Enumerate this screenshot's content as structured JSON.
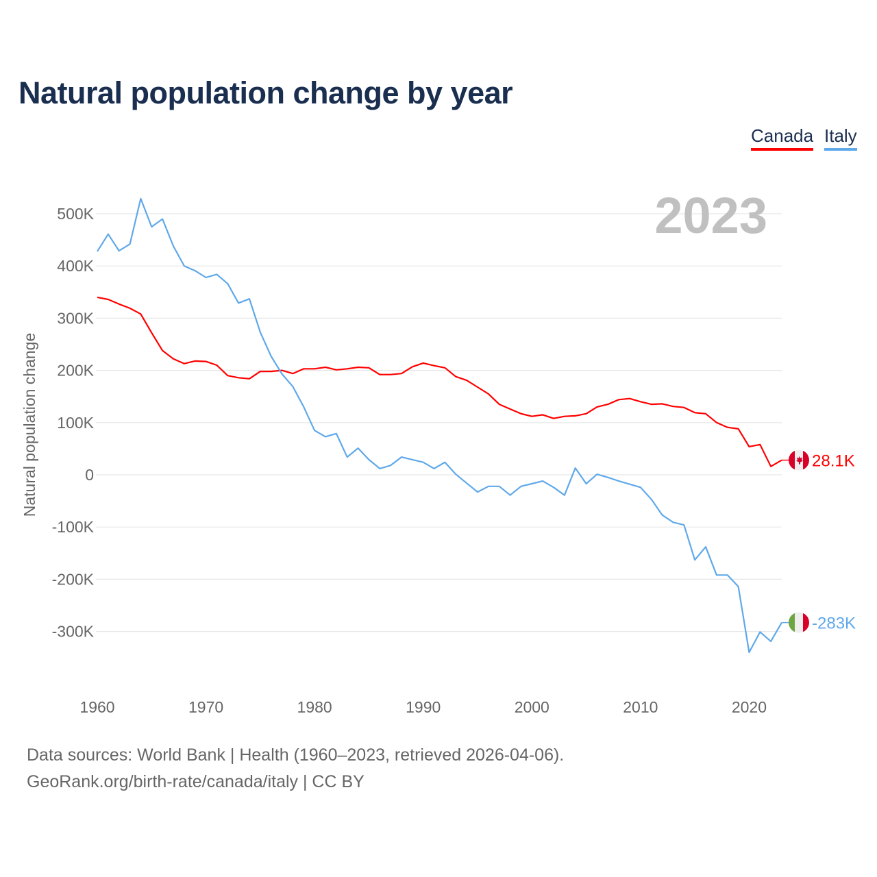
{
  "title": "Natural population change by year",
  "footer": {
    "sources": "Data sources: World Bank | Health (1960–2023, retrieved 2026-04-06).",
    "credit": "GeoRank.org/birth-rate/canada/italy | CC BY"
  },
  "chart_data": {
    "type": "line",
    "title": "Natural population change by year",
    "xlabel": "",
    "ylabel": "Natural population change",
    "year_label": "2023",
    "xlim": [
      1960,
      2023
    ],
    "ylim": [
      -400000,
      550000
    ],
    "x_ticks": [
      1960,
      1970,
      1980,
      1990,
      2000,
      2010,
      2020
    ],
    "y_ticks": [
      500000,
      400000,
      300000,
      200000,
      100000,
      0,
      -100000,
      -200000,
      -300000
    ],
    "y_tick_labels": [
      "500K",
      "400K",
      "300K",
      "200K",
      "100K",
      "0",
      "-100K",
      "-200K",
      "-300K"
    ],
    "grid": true,
    "legend_position": "top-right",
    "x": [
      1960,
      1961,
      1962,
      1963,
      1964,
      1965,
      1966,
      1967,
      1968,
      1969,
      1970,
      1971,
      1972,
      1973,
      1974,
      1975,
      1976,
      1977,
      1978,
      1979,
      1980,
      1981,
      1982,
      1983,
      1984,
      1985,
      1986,
      1987,
      1988,
      1989,
      1990,
      1991,
      1992,
      1993,
      1994,
      1995,
      1996,
      1997,
      1998,
      1999,
      2000,
      2001,
      2002,
      2003,
      2004,
      2005,
      2006,
      2007,
      2008,
      2009,
      2010,
      2011,
      2012,
      2013,
      2014,
      2015,
      2016,
      2017,
      2018,
      2019,
      2020,
      2021,
      2022,
      2023
    ],
    "series": [
      {
        "name": "Canada",
        "color": "#ff0000",
        "end_label": "28.1K",
        "values": [
          340000,
          336000,
          327000,
          319000,
          308000,
          272000,
          238000,
          222000,
          213000,
          218000,
          217000,
          210000,
          190000,
          186000,
          184000,
          198000,
          198000,
          200000,
          194000,
          203000,
          203000,
          206000,
          201000,
          203000,
          206000,
          205000,
          192000,
          192000,
          194000,
          207000,
          214000,
          209000,
          205000,
          188000,
          181000,
          168000,
          155000,
          135000,
          126000,
          117000,
          112000,
          115000,
          108000,
          112000,
          113000,
          117000,
          130000,
          135000,
          144000,
          146000,
          140000,
          135000,
          136000,
          131000,
          129000,
          119000,
          117000,
          100000,
          91000,
          88000,
          54000,
          58000,
          16000,
          28100
        ]
      },
      {
        "name": "Italy",
        "color": "#5fa8ea",
        "end_label": "-283K",
        "values": [
          428000,
          461000,
          429000,
          442000,
          529000,
          475000,
          490000,
          438000,
          400000,
          391000,
          378000,
          384000,
          366000,
          329000,
          337000,
          273000,
          227000,
          193000,
          169000,
          130000,
          85000,
          73000,
          79000,
          34000,
          51000,
          29000,
          12000,
          18000,
          34000,
          29000,
          24000,
          12000,
          24000,
          1000,
          -16000,
          -33000,
          -22000,
          -22000,
          -39000,
          -22000,
          -17000,
          -12000,
          -24000,
          -39000,
          13000,
          -17000,
          1000,
          -5000,
          -12000,
          -18000,
          -24000,
          -47000,
          -77000,
          -91000,
          -96000,
          -163000,
          -138000,
          -192000,
          -192000,
          -214000,
          -340000,
          -301000,
          -319000,
          -283000
        ]
      }
    ]
  }
}
